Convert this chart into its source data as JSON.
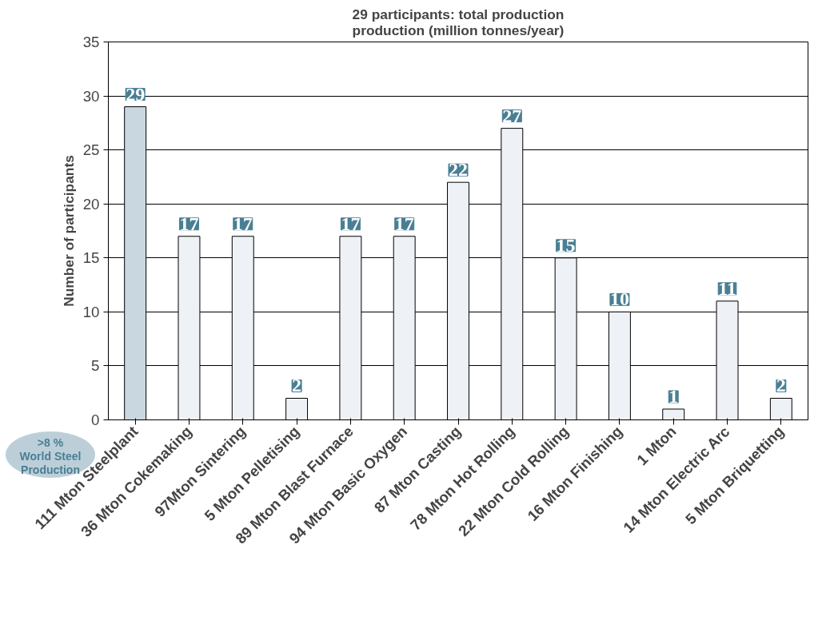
{
  "chart_data": {
    "type": "bar",
    "title": "29 participants: total production\nproduction (million tonnes/year)",
    "ylabel": "Number of participants",
    "categories": [
      "111 Mton Steelplant",
      "36 Mton Cokemaking",
      "97Mton Sintering",
      "5 Mton Pelletising",
      "89 Mton Blast Furnace",
      "94 Mton Basic Oxygen",
      "87 Mton Casting",
      "78 Mton Hot Rolling",
      "22 Mton Cold Rolling",
      "16 Mton Finishing",
      "1 Mton",
      "14 Mton Electric Arc",
      "5 Mton Briquetting"
    ],
    "values": [
      29,
      17,
      17,
      2,
      17,
      17,
      22,
      27,
      15,
      10,
      1,
      11,
      2
    ],
    "colors": [
      "#c9d8e0",
      "#eef1f6",
      "#eef1f6",
      "#eef1f6",
      "#eef1f6",
      "#eef1f6",
      "#eef1f6",
      "#eef1f6",
      "#eef1f6",
      "#eef1f6",
      "#eef1f6",
      "#eef1f6",
      "#eef1f6"
    ],
    "ylim": [
      0,
      35
    ],
    "yticks": [
      0,
      5,
      10,
      15,
      20,
      25,
      30,
      35
    ],
    "grid": "y",
    "data_labels": true,
    "annotations": [
      ">8 %\nWorld Steel\nProduction"
    ]
  }
}
